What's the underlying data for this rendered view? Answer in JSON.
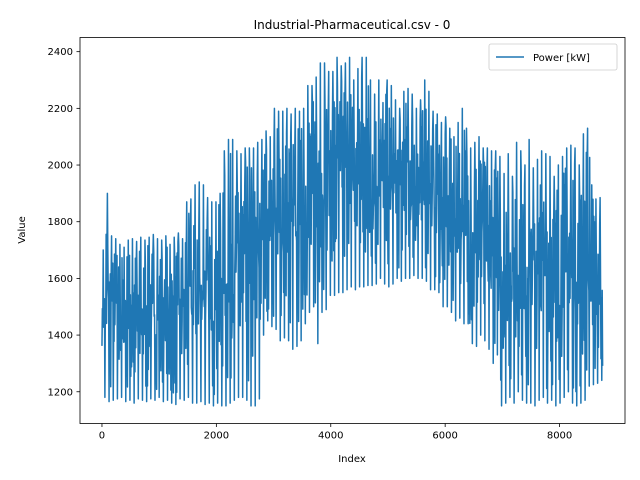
{
  "chart_data": {
    "type": "line",
    "title": "Industrial-Pharmaceutical.csv - 0",
    "xlabel": "Index",
    "ylabel": "Value",
    "xlim": [
      -384,
      9144
    ],
    "ylim": [
      1088,
      2450
    ],
    "x_ticks": [
      0,
      2000,
      4000,
      6000,
      8000
    ],
    "y_ticks": [
      1200,
      1400,
      1600,
      1800,
      2000,
      2200,
      2400
    ],
    "legend": {
      "position": "top-right"
    },
    "series": [
      {
        "name": "Power [kW]",
        "color": "#1f77b4",
        "x_start": 0,
        "x_step": 73,
        "ranges": [
          [
            1180,
            1700
          ],
          [
            1165,
            1900
          ],
          [
            1170,
            1750
          ],
          [
            1175,
            1740
          ],
          [
            1180,
            1720
          ],
          [
            1165,
            1710
          ],
          [
            1170,
            1735
          ],
          [
            1160,
            1740
          ],
          [
            1175,
            1730
          ],
          [
            1170,
            1745
          ],
          [
            1165,
            1735
          ],
          [
            1175,
            1745
          ],
          [
            1170,
            1755
          ],
          [
            1180,
            1740
          ],
          [
            1165,
            1735
          ],
          [
            1170,
            1750
          ],
          [
            1160,
            1720
          ],
          [
            1155,
            1745
          ],
          [
            1175,
            1760
          ],
          [
            1170,
            1740
          ],
          [
            1180,
            1870
          ],
          [
            1160,
            1880
          ],
          [
            1160,
            1930
          ],
          [
            1165,
            1940
          ],
          [
            1155,
            1930
          ],
          [
            1160,
            1885
          ],
          [
            1150,
            1870
          ],
          [
            1160,
            1870
          ],
          [
            1150,
            1900
          ],
          [
            1150,
            2050
          ],
          [
            1160,
            2090
          ],
          [
            1170,
            2090
          ],
          [
            1180,
            2050
          ],
          [
            1180,
            2040
          ],
          [
            1170,
            2060
          ],
          [
            1150,
            2060
          ],
          [
            1150,
            2060
          ],
          [
            1175,
            2080
          ],
          [
            1400,
            2090
          ],
          [
            1450,
            2120
          ],
          [
            1430,
            2100
          ],
          [
            1420,
            2200
          ],
          [
            1380,
            2190
          ],
          [
            1390,
            2190
          ],
          [
            1380,
            2200
          ],
          [
            1350,
            2180
          ],
          [
            1360,
            2200
          ],
          [
            1380,
            2190
          ],
          [
            1440,
            2200
          ],
          [
            1480,
            2280
          ],
          [
            1500,
            2280
          ],
          [
            1370,
            2310
          ],
          [
            1480,
            2360
          ],
          [
            1490,
            2360
          ],
          [
            1540,
            2330
          ],
          [
            1540,
            2330
          ],
          [
            1550,
            2380
          ],
          [
            1550,
            2350
          ],
          [
            1560,
            2360
          ],
          [
            1570,
            2380
          ],
          [
            1560,
            2300
          ],
          [
            1570,
            2340
          ],
          [
            1570,
            2380
          ],
          [
            1575,
            2380
          ],
          [
            1575,
            2300
          ],
          [
            1580,
            2250
          ],
          [
            1600,
            2300
          ],
          [
            1580,
            2220
          ],
          [
            1570,
            2300
          ],
          [
            1580,
            2280
          ],
          [
            1600,
            2230
          ],
          [
            1590,
            2200
          ],
          [
            1600,
            2260
          ],
          [
            1600,
            2270
          ],
          [
            1610,
            2250
          ],
          [
            1600,
            2200
          ],
          [
            1600,
            2230
          ],
          [
            1590,
            2300
          ],
          [
            1560,
            2260
          ],
          [
            1560,
            2190
          ],
          [
            1550,
            2180
          ],
          [
            1500,
            2150
          ],
          [
            1500,
            2170
          ],
          [
            1480,
            2130
          ],
          [
            1450,
            2100
          ],
          [
            1460,
            2150
          ],
          [
            1440,
            2200
          ],
          [
            1440,
            2130
          ],
          [
            1370,
            2060
          ],
          [
            1360,
            2080
          ],
          [
            1400,
            2100
          ],
          [
            1380,
            2060
          ],
          [
            1350,
            2060
          ],
          [
            1300,
            2050
          ],
          [
            1330,
            2050
          ],
          [
            1150,
            2030
          ],
          [
            1160,
            1970
          ],
          [
            1180,
            2040
          ],
          [
            1160,
            1960
          ],
          [
            1200,
            2080
          ],
          [
            1170,
            2050
          ],
          [
            1160,
            2000
          ],
          [
            1160,
            2090
          ],
          [
            1150,
            1990
          ],
          [
            1170,
            2020
          ],
          [
            1180,
            2050
          ],
          [
            1160,
            2040
          ],
          [
            1170,
            2030
          ],
          [
            1150,
            1960
          ],
          [
            1160,
            2000
          ],
          [
            1180,
            2030
          ],
          [
            1200,
            2060
          ],
          [
            1160,
            2070
          ],
          [
            1150,
            2060
          ],
          [
            1160,
            2000
          ],
          [
            1170,
            2110
          ],
          [
            1220,
            2130
          ],
          [
            1225,
            1930
          ],
          [
            1230,
            1880
          ],
          [
            1240,
            1885
          ]
        ]
      }
    ]
  }
}
